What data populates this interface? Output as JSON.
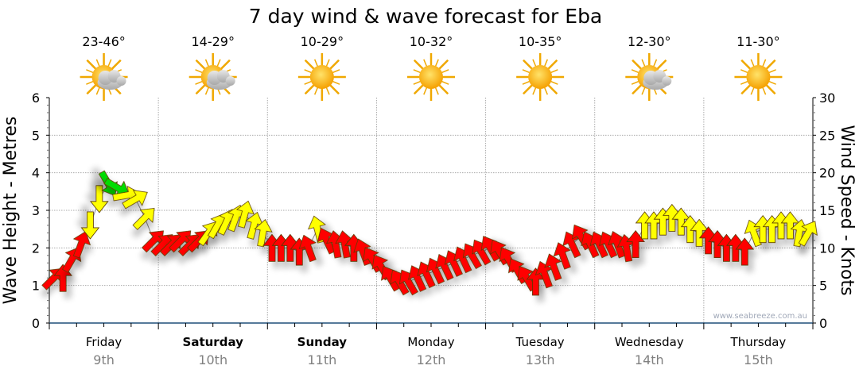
{
  "chart_data": {
    "type": "line",
    "title": "7 day wind & wave forecast for Eba",
    "ylabel_left": "Wave Height - Metres",
    "ylabel_right": "Wind Speed - Knots",
    "ylim_left": [
      0,
      6
    ],
    "ylim_right": [
      0,
      30
    ],
    "yticks_left": [
      "0",
      "1",
      "2",
      "3",
      "4",
      "5",
      "6"
    ],
    "yticks_right": [
      "0",
      "5",
      "10",
      "15",
      "20",
      "25",
      "30"
    ],
    "grid": true,
    "watermark": "www.seabreeze.com.au",
    "days": [
      {
        "name": "Friday",
        "date": "9th",
        "temp": "23-46°",
        "icon": "partly-cloudy-icon",
        "bold": false
      },
      {
        "name": "Saturday",
        "date": "10th",
        "temp": "14-29°",
        "icon": "partly-cloudy-icon",
        "bold": true
      },
      {
        "name": "Sunday",
        "date": "11th",
        "temp": "10-29°",
        "icon": "sunny-icon",
        "bold": true
      },
      {
        "name": "Monday",
        "date": "12th",
        "temp": "10-32°",
        "icon": "sunny-icon",
        "bold": false
      },
      {
        "name": "Tuesday",
        "date": "13th",
        "temp": "10-35°",
        "icon": "sunny-icon",
        "bold": false
      },
      {
        "name": "Wednesday",
        "date": "14th",
        "temp": "12-30°",
        "icon": "partly-cloudy-icon",
        "bold": false
      },
      {
        "name": "Thursday",
        "date": "15th",
        "temp": "11-30°",
        "icon": "sunny-icon",
        "bold": false
      }
    ],
    "wind_interval_hours": 2,
    "wind_speed_knots": [
      6,
      6,
      8.5,
      10.5,
      13,
      16.5,
      18.5,
      18,
      17,
      16.5,
      14,
      11,
      10.5,
      10.5,
      11,
      10.5,
      11,
      12,
      13,
      13.5,
      14,
      14.5,
      13,
      12,
      10,
      10,
      10,
      9.5,
      10,
      12.5,
      11,
      10.5,
      10.5,
      10,
      9.5,
      8.5,
      7.5,
      6,
      5.5,
      5.5,
      6,
      6.5,
      7,
      7.5,
      8,
      8.5,
      9,
      9.5,
      10,
      9.5,
      8.5,
      7,
      6,
      5.5,
      6.5,
      7.5,
      9,
      10.5,
      11.5,
      10.5,
      10.5,
      10.5,
      10.5,
      10,
      10.5,
      13,
      13,
      13.5,
      14,
      13.5,
      12.5,
      12,
      11,
      10.5,
      10,
      10,
      9.5,
      12,
      12.5,
      12.5,
      13,
      13,
      12,
      12
    ],
    "wind_arrow_direction_deg": [
      45,
      0,
      30,
      20,
      180,
      180,
      150,
      120,
      80,
      60,
      45,
      45,
      45,
      45,
      45,
      45,
      45,
      35,
      30,
      25,
      20,
      15,
      15,
      10,
      0,
      0,
      0,
      0,
      -20,
      -15,
      -25,
      -10,
      -10,
      0,
      -20,
      -30,
      -30,
      -30,
      -30,
      -30,
      -25,
      -25,
      -25,
      -25,
      -25,
      -25,
      -30,
      -30,
      -30,
      -30,
      -30,
      -30,
      -30,
      0,
      -20,
      -20,
      -20,
      -25,
      -30,
      -25,
      -25,
      -25,
      -20,
      -10,
      0,
      0,
      0,
      0,
      0,
      0,
      0,
      0,
      0,
      0,
      0,
      0,
      0,
      -20,
      0,
      0,
      0,
      0,
      10,
      30
    ],
    "wind_category": [
      "r",
      "r",
      "r",
      "r",
      "y",
      "y",
      "g",
      "g",
      "y",
      "y",
      "y",
      "r",
      "r",
      "r",
      "r",
      "r",
      "r",
      "y",
      "y",
      "y",
      "y",
      "y",
      "y",
      "y",
      "r",
      "r",
      "r",
      "r",
      "r",
      "y",
      "r",
      "r",
      "r",
      "r",
      "r",
      "r",
      "r",
      "r",
      "r",
      "r",
      "r",
      "r",
      "r",
      "r",
      "r",
      "r",
      "r",
      "r",
      "r",
      "r",
      "r",
      "r",
      "r",
      "r",
      "r",
      "r",
      "r",
      "r",
      "r",
      "r",
      "r",
      "r",
      "r",
      "r",
      "r",
      "y",
      "y",
      "y",
      "y",
      "y",
      "y",
      "y",
      "r",
      "r",
      "r",
      "r",
      "r",
      "y",
      "y",
      "y",
      "y",
      "y",
      "y",
      "y"
    ],
    "category_colors": {
      "r": "#ff0000",
      "y": "#ffff00",
      "g": "#00dd00"
    }
  }
}
